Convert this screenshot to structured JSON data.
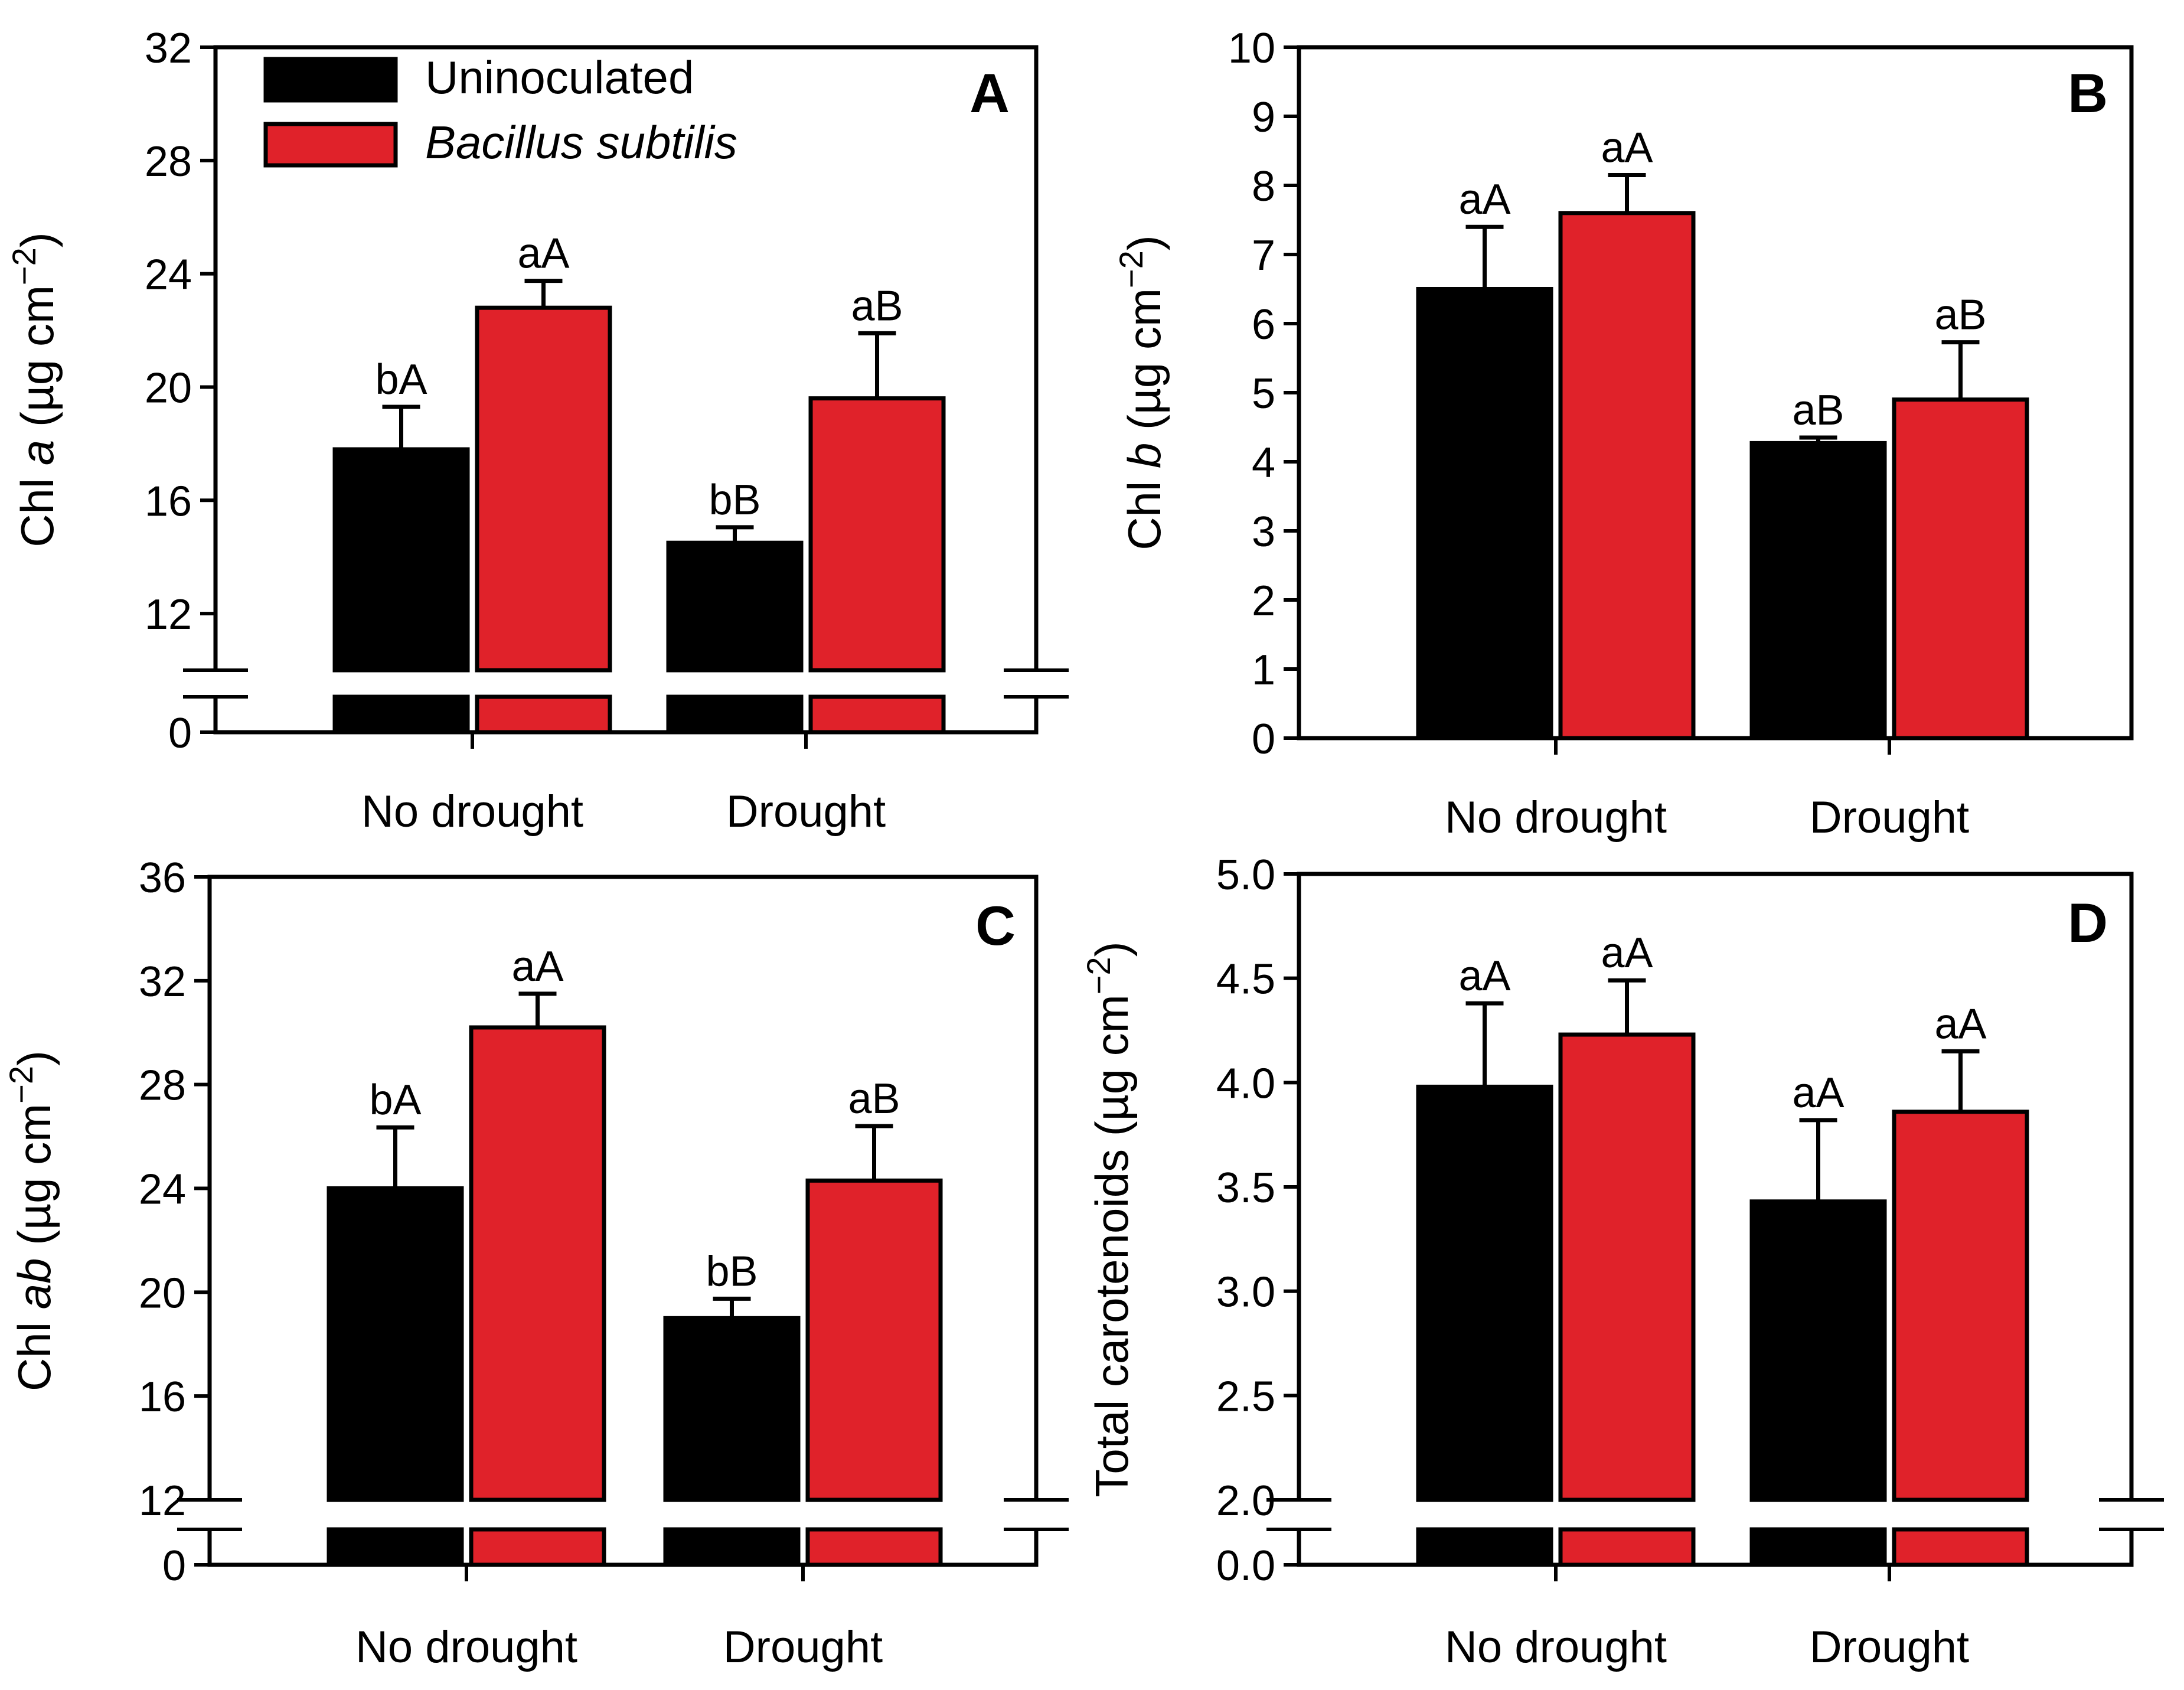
{
  "colors": {
    "uninoculated": "#000000",
    "bacillus": "#e0222a",
    "axis": "#000000"
  },
  "legend": {
    "series": [
      "Uninoculated",
      "Bacillus subtilis"
    ],
    "placement": "top-left of panel A"
  },
  "chart_data": [
    {
      "panel": "A",
      "type": "bar",
      "categories": [
        "No drought",
        "Drought"
      ],
      "ylabel_parts": [
        "Chl ",
        "a",
        " (µg cm",
        "−2",
        ")"
      ],
      "ylim": [
        0,
        32
      ],
      "axis_break": [
        0,
        10
      ],
      "yticks": [
        0,
        12,
        16,
        20,
        24,
        28,
        32
      ],
      "ytick_labels": [
        "0",
        "12",
        "16",
        "20",
        "24",
        "28",
        "32"
      ],
      "series": [
        {
          "name": "Uninoculated",
          "values": [
            17.8,
            14.5
          ],
          "errors": [
            1.5,
            0.55
          ],
          "letters": [
            "bA",
            "bB"
          ]
        },
        {
          "name": "Bacillus subtilis",
          "values": [
            22.8,
            19.6
          ],
          "errors": [
            0.95,
            2.3
          ],
          "letters": [
            "aA",
            "aB"
          ]
        }
      ]
    },
    {
      "panel": "B",
      "type": "bar",
      "categories": [
        "No drought",
        "Drought"
      ],
      "ylabel_parts": [
        "Chl ",
        "b",
        " (µg cm",
        "−2",
        ")"
      ],
      "ylim": [
        0,
        10
      ],
      "axis_break": null,
      "yticks": [
        0,
        1,
        2,
        3,
        4,
        5,
        6,
        7,
        8,
        9,
        10
      ],
      "ytick_labels": [
        "0",
        "1",
        "2",
        "3",
        "4",
        "5",
        "6",
        "7",
        "8",
        "9",
        "10"
      ],
      "series": [
        {
          "name": "Uninoculated",
          "values": [
            6.5,
            4.27
          ],
          "errors": [
            0.9,
            0.08
          ],
          "letters": [
            "aA",
            "aB"
          ]
        },
        {
          "name": "Bacillus subtilis",
          "values": [
            7.6,
            4.9
          ],
          "errors": [
            0.55,
            0.83
          ],
          "letters": [
            "aA",
            "aB"
          ]
        }
      ]
    },
    {
      "panel": "C",
      "type": "bar",
      "categories": [
        "No drought",
        "Drought"
      ],
      "ylabel_parts": [
        "Chl ",
        "ab",
        " (µg cm",
        "−2",
        ")"
      ],
      "ylim": [
        0,
        36
      ],
      "axis_break": [
        0,
        12
      ],
      "yticks": [
        0,
        12,
        16,
        20,
        24,
        28,
        32,
        36
      ],
      "ytick_labels": [
        "0",
        "12",
        "16",
        "20",
        "24",
        "28",
        "32",
        "36"
      ],
      "series": [
        {
          "name": "Uninoculated",
          "values": [
            24.0,
            19.0
          ],
          "errors": [
            2.35,
            0.75
          ],
          "letters": [
            "bA",
            "bB"
          ]
        },
        {
          "name": "Bacillus subtilis",
          "values": [
            30.2,
            24.3
          ],
          "errors": [
            1.3,
            2.1
          ],
          "letters": [
            "aA",
            "aB"
          ]
        }
      ]
    },
    {
      "panel": "D",
      "type": "bar",
      "categories": [
        "No drought",
        "Drought"
      ],
      "ylabel_parts": [
        "Total carotenoids (µg cm",
        "",
        "",
        "−2",
        ")"
      ],
      "ylim": [
        0,
        5
      ],
      "axis_break": [
        0,
        2
      ],
      "yticks": [
        0,
        2,
        2.5,
        3,
        3.5,
        4,
        4.5,
        5
      ],
      "ytick_labels": [
        "0.0",
        "2.0",
        "2.5",
        "3.0",
        "3.5",
        "4.0",
        "4.5",
        "5.0"
      ],
      "series": [
        {
          "name": "Uninoculated",
          "values": [
            3.98,
            3.43
          ],
          "errors": [
            0.4,
            0.39
          ],
          "letters": [
            "aA",
            "aA"
          ]
        },
        {
          "name": "Bacillus subtilis",
          "values": [
            4.23,
            3.86
          ],
          "errors": [
            0.26,
            0.29
          ],
          "letters": [
            "aA",
            "aA"
          ]
        }
      ]
    }
  ]
}
